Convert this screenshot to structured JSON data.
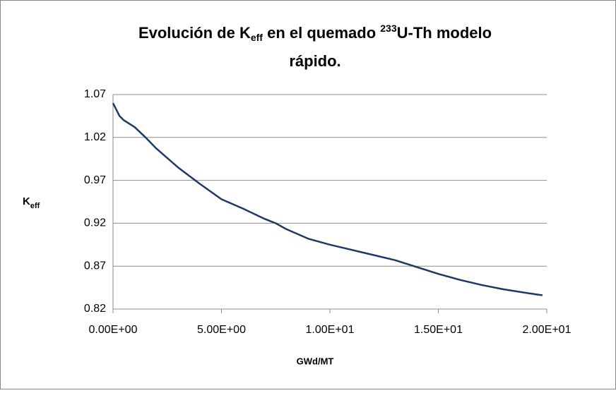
{
  "chart_data": {
    "type": "line",
    "title": [
      "Evolución de K",
      "eff",
      " en el quemado ",
      "233",
      "U-Th modelo",
      "rápido."
    ],
    "x_label": "GWd/MT",
    "y_label": [
      "K",
      "eff"
    ],
    "xlim": [
      0,
      20
    ],
    "xticks": [
      {
        "value": 0,
        "label": "0.00E+00"
      },
      {
        "value": 5,
        "label": "5.00E+00"
      },
      {
        "value": 10,
        "label": "1.00E+01"
      },
      {
        "value": 15,
        "label": "1.50E+01"
      },
      {
        "value": 20,
        "label": "2.00E+01"
      }
    ],
    "ylim": [
      0.82,
      1.07
    ],
    "yticks": [
      0.82,
      0.87,
      0.92,
      0.97,
      1.02,
      1.07
    ],
    "grid": true,
    "series": [
      {
        "color": "#1f3864",
        "x": [
          0,
          0.3,
          0.5,
          1,
          1.5,
          2,
          3,
          4,
          5,
          6,
          7,
          7.5,
          8,
          9,
          10,
          11,
          12,
          13,
          14,
          15,
          16,
          17,
          18,
          19,
          19.8
        ],
        "values": [
          1.06,
          1.045,
          1.04,
          1.032,
          1.02,
          1.007,
          0.985,
          0.966,
          0.948,
          0.937,
          0.925,
          0.92,
          0.913,
          0.902,
          0.895,
          0.889,
          0.883,
          0.877,
          0.869,
          0.861,
          0.854,
          0.848,
          0.843,
          0.839,
          0.836
        ]
      }
    ]
  }
}
